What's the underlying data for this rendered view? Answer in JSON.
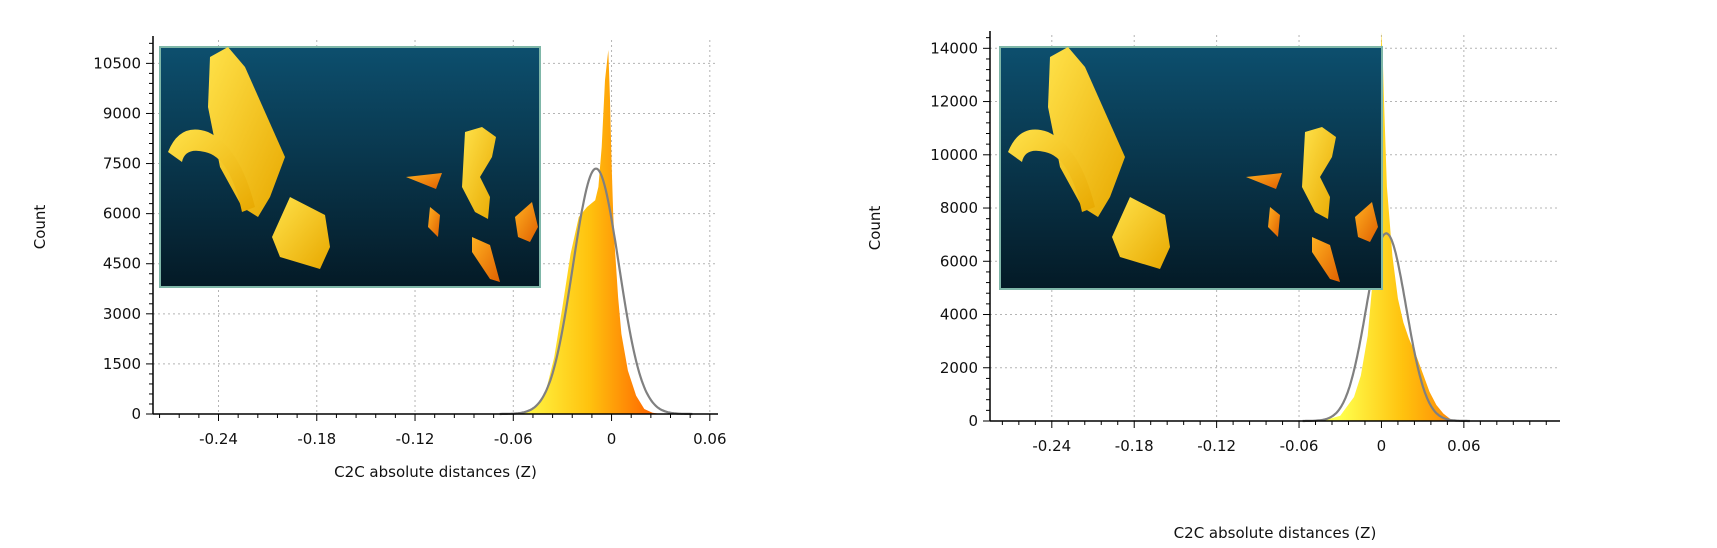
{
  "chart_data": [
    {
      "type": "area",
      "xlabel": "C2C absolute distances (Z)",
      "ylabel": "Count",
      "xlim": [
        -0.28,
        0.065
      ],
      "ylim": [
        0,
        11200
      ],
      "x_ticks": [
        -0.24,
        -0.18,
        -0.12,
        -0.06,
        0,
        0.06
      ],
      "x_tick_labels": [
        "-0.24",
        "-0.18",
        "-0.12",
        "-0.06",
        "0",
        "0.06"
      ],
      "y_ticks": [
        0,
        1500,
        3000,
        4500,
        6000,
        7500,
        9000,
        10500
      ],
      "y_tick_labels": [
        "0",
        "1500",
        "3000",
        "4500",
        "6000",
        "7500",
        "9000",
        "10500"
      ],
      "grid": true,
      "histogram": {
        "x": [
          -0.06,
          -0.05,
          -0.045,
          -0.04,
          -0.035,
          -0.03,
          -0.025,
          -0.02,
          -0.015,
          -0.01,
          -0.008,
          -0.006,
          -0.004,
          -0.002,
          -0.001,
          0,
          0.001,
          0.002,
          0.004,
          0.006,
          0.01,
          0.015,
          0.02,
          0.025,
          0.03
        ],
        "y": [
          0,
          100,
          300,
          700,
          1700,
          3200,
          4800,
          5900,
          6200,
          6400,
          6800,
          8000,
          10000,
          10900,
          9500,
          7500,
          6000,
          5000,
          3500,
          2400,
          1300,
          550,
          150,
          40,
          0
        ]
      },
      "fit_curve": {
        "mean": -0.0095,
        "peak": 7350,
        "sigma": 0.014
      },
      "inset": {
        "content": "3D rendering of yellow/orange point-cloud fragments on a dark blue background"
      }
    },
    {
      "type": "area",
      "xlabel": "C2C absolute distances (Z)",
      "ylabel": "Count",
      "xlim": [
        -0.285,
        0.13
      ],
      "ylim": [
        0,
        14500
      ],
      "x_ticks": [
        -0.24,
        -0.18,
        -0.12,
        -0.06,
        0,
        0.06
      ],
      "x_tick_labels": [
        "-0.24",
        "-0.18",
        "-0.12",
        "-0.06",
        "0",
        "0.06"
      ],
      "y_ticks": [
        0,
        2000,
        4000,
        6000,
        8000,
        10000,
        12000,
        14000
      ],
      "y_tick_labels": [
        "0",
        "2000",
        "4000",
        "6000",
        "8000",
        "10000",
        "12000",
        "14000"
      ],
      "grid": true,
      "histogram": {
        "x": [
          -0.05,
          -0.04,
          -0.03,
          -0.02,
          -0.015,
          -0.01,
          -0.006,
          -0.003,
          -0.002,
          -0.001,
          0,
          0.001,
          0.002,
          0.004,
          0.008,
          0.012,
          0.016,
          0.02,
          0.025,
          0.03,
          0.035,
          0.04,
          0.045,
          0.05,
          0.055
        ],
        "y": [
          0,
          50,
          200,
          900,
          1700,
          3200,
          5500,
          8500,
          10500,
          12800,
          14600,
          13600,
          11800,
          8800,
          6200,
          4600,
          3700,
          3100,
          2500,
          1800,
          1100,
          600,
          280,
          80,
          0
        ]
      },
      "fit_curve": {
        "mean": 0.0035,
        "peak": 7050,
        "sigma": 0.0145
      },
      "inset": {
        "content": "3D rendering of yellow/orange point-cloud fragments on a dark blue background"
      }
    }
  ],
  "colors": {
    "fill_low": "#ffff4d",
    "fill_mid": "#ffc20e",
    "fill_high": "#ff6a00",
    "fit_curve": "#808080",
    "grid": "#b4b4b4",
    "inset_top": "#0d4f6e",
    "inset_bottom": "#041a26",
    "inset_border": "#7fb7a8"
  }
}
